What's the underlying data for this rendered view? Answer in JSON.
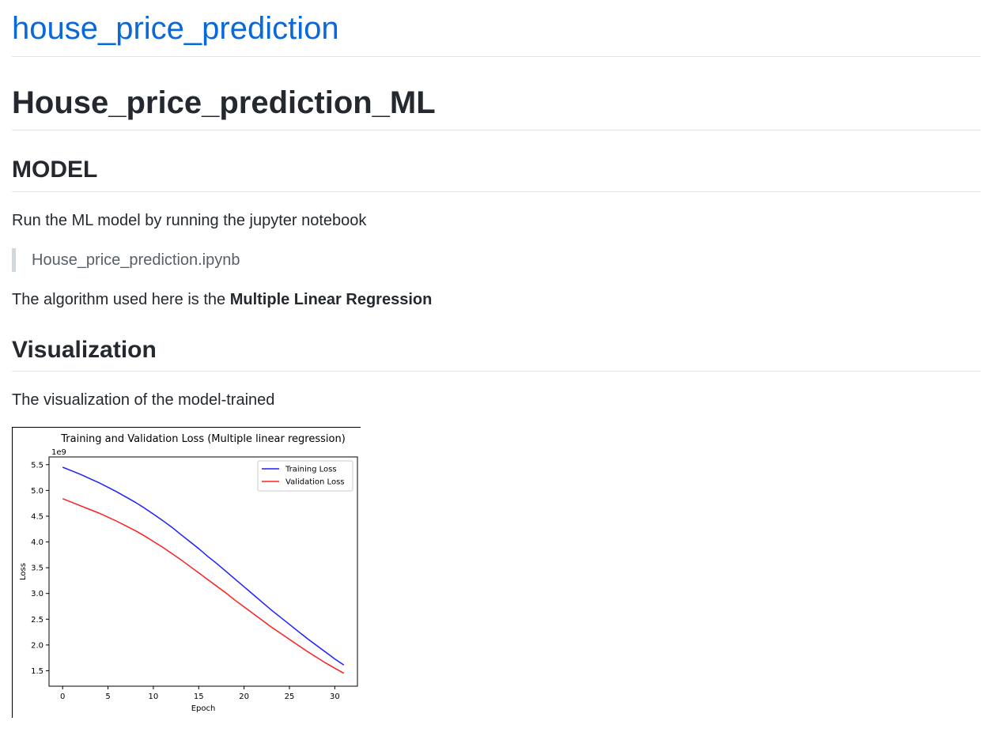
{
  "site_title": "house_price_prediction",
  "heading": "House_price_prediction_ML",
  "model_section": {
    "heading": "MODEL",
    "intro": "Run the ML model by running the jupyter notebook",
    "notebook": "House_price_prediction.ipynb",
    "algorithm_prefix": "The algorithm used here is the ",
    "algorithm_name": "Multiple Linear Regression"
  },
  "visualization_section": {
    "heading": "Visualization",
    "intro": "The visualization of the model-trained"
  },
  "chart_data": {
    "type": "line",
    "title": "Training and Validation Loss (Multiple linear regression)",
    "xlabel": "Epoch",
    "ylabel": "Loss",
    "y_scale_note": "1e9",
    "xlim": [
      -1.5,
      32.5
    ],
    "ylim": [
      1.2,
      5.65
    ],
    "xticks": [
      0,
      5,
      10,
      15,
      20,
      25,
      30
    ],
    "yticks": [
      1.5,
      2.0,
      2.5,
      3.0,
      3.5,
      4.0,
      4.5,
      5.0,
      5.5
    ],
    "legend_position": "top-right",
    "x": [
      0,
      1,
      2,
      3,
      4,
      5,
      6,
      7,
      8,
      9,
      10,
      11,
      12,
      13,
      14,
      15,
      16,
      17,
      18,
      19,
      20,
      21,
      22,
      23,
      24,
      25,
      26,
      27,
      28,
      29,
      30,
      31
    ],
    "series": [
      {
        "name": "Training Loss",
        "color": "#1f1fff",
        "values": [
          5.45,
          5.38,
          5.31,
          5.23,
          5.15,
          5.06,
          4.97,
          4.87,
          4.77,
          4.66,
          4.54,
          4.42,
          4.29,
          4.15,
          4.01,
          3.87,
          3.72,
          3.58,
          3.43,
          3.28,
          3.13,
          2.98,
          2.83,
          2.68,
          2.54,
          2.4,
          2.26,
          2.12,
          1.99,
          1.86,
          1.73,
          1.61
        ]
      },
      {
        "name": "Validation Loss",
        "color": "#ff1f1f",
        "values": [
          4.84,
          4.77,
          4.7,
          4.63,
          4.56,
          4.48,
          4.4,
          4.31,
          4.22,
          4.12,
          4.01,
          3.9,
          3.78,
          3.66,
          3.53,
          3.4,
          3.27,
          3.14,
          3.01,
          2.87,
          2.74,
          2.61,
          2.48,
          2.35,
          2.23,
          2.11,
          1.99,
          1.87,
          1.76,
          1.65,
          1.55,
          1.45
        ]
      }
    ]
  }
}
